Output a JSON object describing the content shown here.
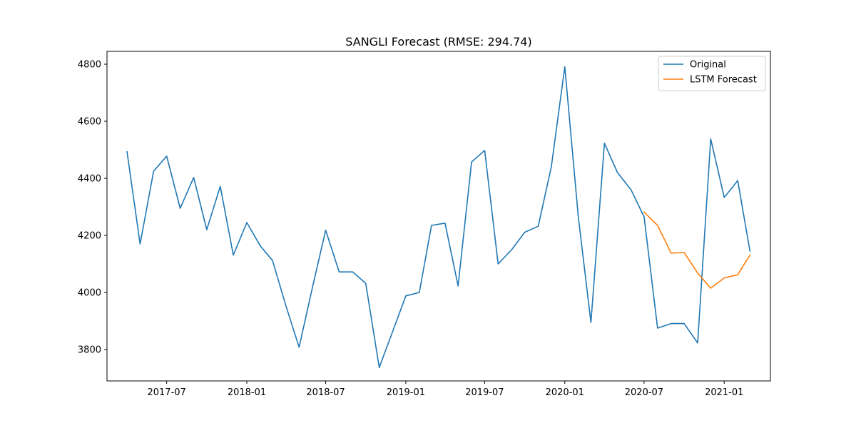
{
  "chart_data": {
    "type": "line",
    "title": "SANGLI Forecast (RMSE: 294.74)",
    "xlabel": "",
    "ylabel": "",
    "xlim": [
      "2017-02-14",
      "2021-04-17"
    ],
    "ylim": [
      3690,
      4845
    ],
    "x_ticks": [
      {
        "date": "2017-07-01",
        "label": "2017-07"
      },
      {
        "date": "2018-01-01",
        "label": "2018-01"
      },
      {
        "date": "2018-07-01",
        "label": "2018-07"
      },
      {
        "date": "2019-01-01",
        "label": "2019-01"
      },
      {
        "date": "2019-07-01",
        "label": "2019-07"
      },
      {
        "date": "2020-01-01",
        "label": "2020-01"
      },
      {
        "date": "2020-07-01",
        "label": "2020-07"
      },
      {
        "date": "2021-01-01",
        "label": "2021-01"
      }
    ],
    "y_ticks": [
      3800,
      4000,
      4200,
      4400,
      4600,
      4800
    ],
    "grid": false,
    "legend": "top-right",
    "series": [
      {
        "name": "Original",
        "color": "#1f77b4",
        "points": [
          [
            "2017-04-01",
            4493
          ],
          [
            "2017-05-01",
            4170
          ],
          [
            "2017-06-01",
            4425
          ],
          [
            "2017-07-01",
            4478
          ],
          [
            "2017-08-01",
            4295
          ],
          [
            "2017-09-01",
            4403
          ],
          [
            "2017-10-01",
            4220
          ],
          [
            "2017-11-01",
            4372
          ],
          [
            "2017-12-01",
            4131
          ],
          [
            "2018-01-01",
            4245
          ],
          [
            "2018-02-01",
            4163
          ],
          [
            "2018-03-01",
            4112
          ],
          [
            "2018-04-01",
            3952
          ],
          [
            "2018-05-01",
            3808
          ],
          [
            "2018-06-01",
            4020
          ],
          [
            "2018-07-01",
            4218
          ],
          [
            "2018-08-01",
            4072
          ],
          [
            "2018-09-01",
            4072
          ],
          [
            "2018-10-01",
            4032
          ],
          [
            "2018-11-01",
            3737
          ],
          [
            "2018-12-01",
            3860
          ],
          [
            "2019-01-01",
            3988
          ],
          [
            "2019-02-01",
            4000
          ],
          [
            "2019-03-01",
            4235
          ],
          [
            "2019-04-01",
            4243
          ],
          [
            "2019-05-01",
            4023
          ],
          [
            "2019-06-01",
            4457
          ],
          [
            "2019-07-01",
            4498
          ],
          [
            "2019-08-01",
            4100
          ],
          [
            "2019-09-01",
            4150
          ],
          [
            "2019-10-01",
            4211
          ],
          [
            "2019-11-01",
            4232
          ],
          [
            "2019-12-01",
            4440
          ],
          [
            "2020-01-01",
            4791
          ],
          [
            "2020-02-01",
            4265
          ],
          [
            "2020-03-01",
            3895
          ],
          [
            "2020-04-01",
            4523
          ],
          [
            "2020-05-01",
            4420
          ],
          [
            "2020-06-01",
            4360
          ],
          [
            "2020-07-01",
            4265
          ],
          [
            "2020-08-01",
            3875
          ],
          [
            "2020-09-01",
            3891
          ],
          [
            "2020-10-01",
            3891
          ],
          [
            "2020-11-01",
            3823
          ],
          [
            "2020-12-01",
            4538
          ],
          [
            "2021-01-01",
            4333
          ],
          [
            "2021-02-01",
            4392
          ],
          [
            "2021-03-01",
            4145
          ]
        ]
      },
      {
        "name": "LSTM Forecast",
        "color": "#ff7f0e",
        "points": [
          [
            "2020-07-01",
            4282
          ],
          [
            "2020-08-01",
            4235
          ],
          [
            "2020-09-01",
            4138
          ],
          [
            "2020-10-01",
            4140
          ],
          [
            "2020-11-01",
            4068
          ],
          [
            "2020-12-01",
            4015
          ],
          [
            "2021-01-01",
            4051
          ],
          [
            "2021-02-01",
            4062
          ],
          [
            "2021-03-01",
            4131
          ]
        ]
      }
    ]
  }
}
